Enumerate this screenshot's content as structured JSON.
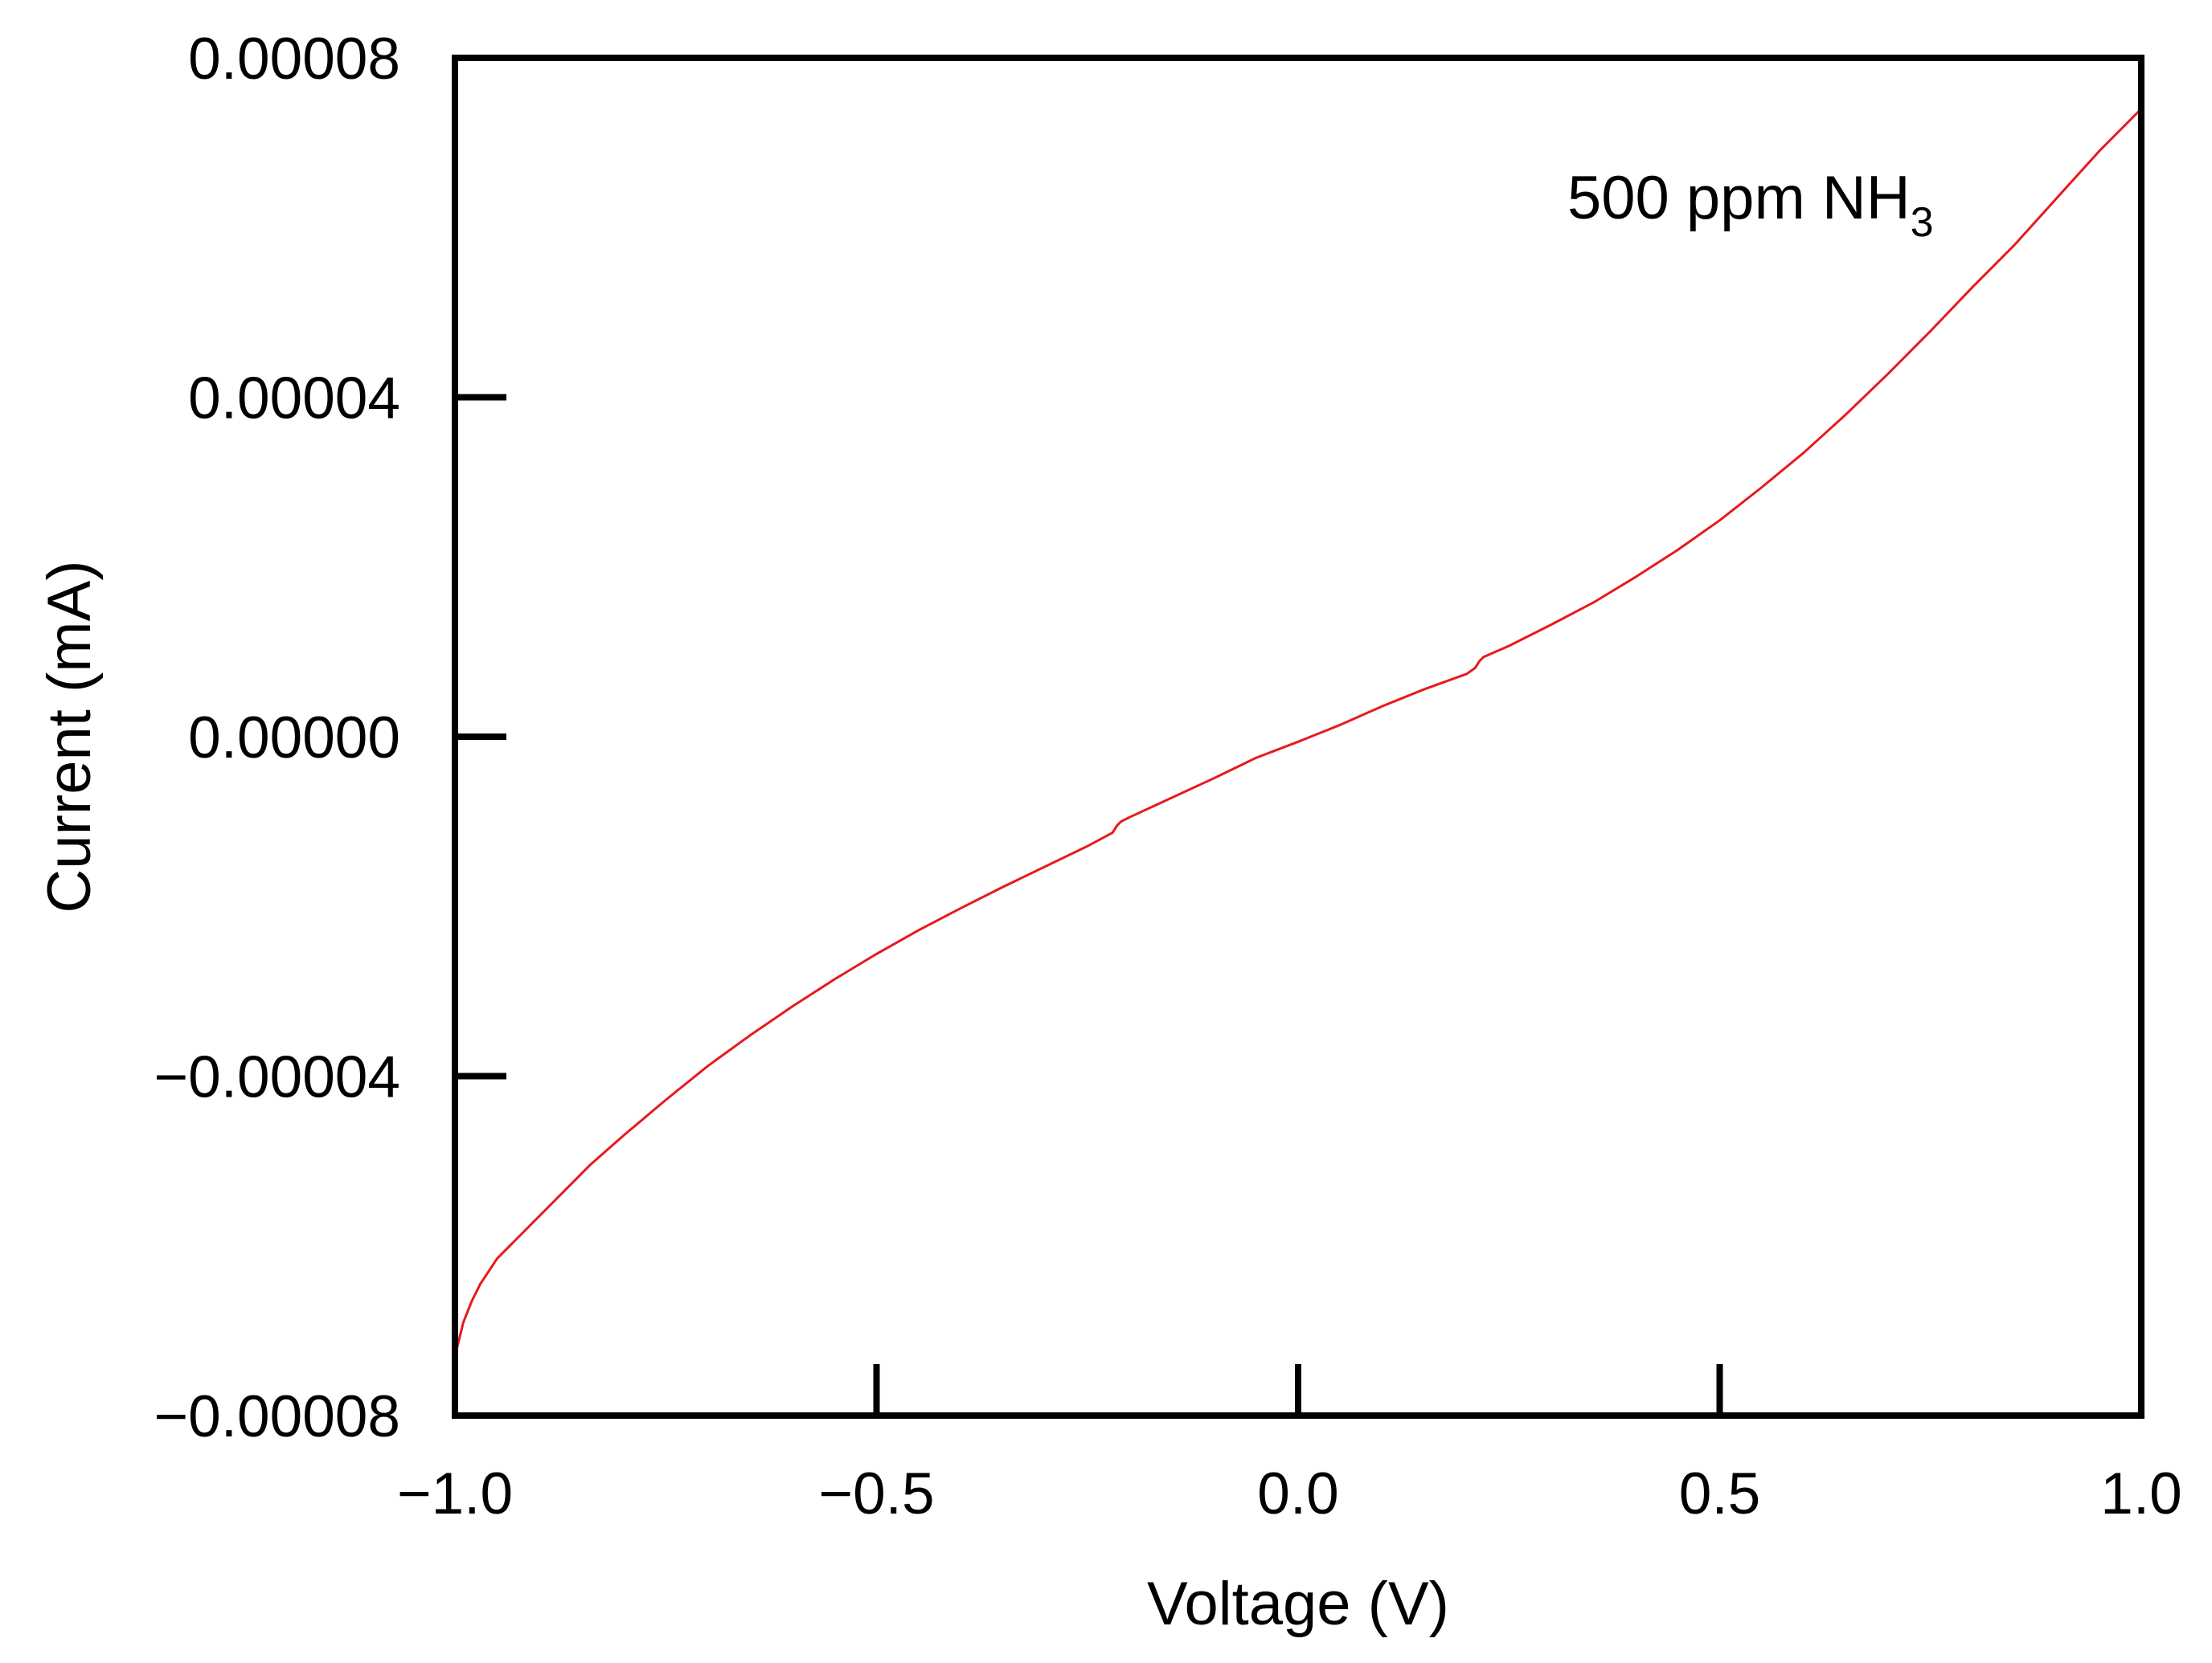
{
  "chart_data": {
    "type": "line",
    "title": "",
    "xlabel": "Voltage (V)",
    "ylabel": "Current (mA)",
    "xlim": [
      -1.0,
      1.0
    ],
    "ylim": [
      -8e-05,
      8e-05
    ],
    "xticks": [
      -1.0,
      -0.5,
      0.0,
      0.5,
      1.0
    ],
    "xtick_labels": [
      "−1.0",
      "−0.5",
      "0.0",
      "0.5",
      "1.0"
    ],
    "yticks": [
      -8e-05,
      -4e-05,
      0.0,
      4e-05,
      8e-05
    ],
    "ytick_labels": [
      "−0.00008",
      "−0.00004",
      "0.00000",
      "0.00004",
      "0.00008"
    ],
    "grid": false,
    "annotation": {
      "text": "500 ppm NH",
      "subscript": "3"
    },
    "series": [
      {
        "name": "500 ppm NH3",
        "color": "#e8191d",
        "x": [
          -1.0,
          -0.99,
          -0.98,
          -0.97,
          -0.95,
          -0.93,
          -0.9,
          -0.87,
          -0.84,
          -0.8,
          -0.75,
          -0.7,
          -0.65,
          -0.6,
          -0.55,
          -0.5,
          -0.45,
          -0.4,
          -0.35,
          -0.3,
          -0.25,
          -0.22,
          -0.215,
          -0.21,
          -0.2,
          -0.15,
          -0.1,
          -0.05,
          0.0,
          0.05,
          0.1,
          0.15,
          0.2,
          0.21,
          0.215,
          0.22,
          0.25,
          0.3,
          0.35,
          0.4,
          0.45,
          0.5,
          0.55,
          0.6,
          0.65,
          0.7,
          0.75,
          0.8,
          0.85,
          0.9,
          0.95,
          1.0
        ],
        "y": [
          -7.3e-05,
          -6.9e-05,
          -6.65e-05,
          -6.45e-05,
          -6.15e-05,
          -5.95e-05,
          -5.65e-05,
          -5.35e-05,
          -5.05e-05,
          -4.7e-05,
          -4.28e-05,
          -3.88e-05,
          -3.52e-05,
          -3.18e-05,
          -2.86e-05,
          -2.56e-05,
          -2.28e-05,
          -2.02e-05,
          -1.77e-05,
          -1.53e-05,
          -1.29e-05,
          -1.13e-05,
          -1.05e-05,
          -1e-05,
          -9.5e-06,
          -7.2e-06,
          -4.9e-06,
          -2.5e-06,
          -6e-07,
          1.4e-06,
          3.6e-06,
          5.6e-06,
          7.4e-06,
          8.1e-06,
          8.9e-06,
          9.4e-06,
          1.07e-05,
          1.32e-05,
          1.58e-05,
          1.88e-05,
          2.2e-05,
          2.55e-05,
          2.94e-05,
          3.35e-05,
          3.8e-05,
          4.28e-05,
          4.78e-05,
          5.3e-05,
          5.8e-05,
          6.35e-05,
          6.9e-05,
          7.4e-05
        ]
      }
    ]
  }
}
